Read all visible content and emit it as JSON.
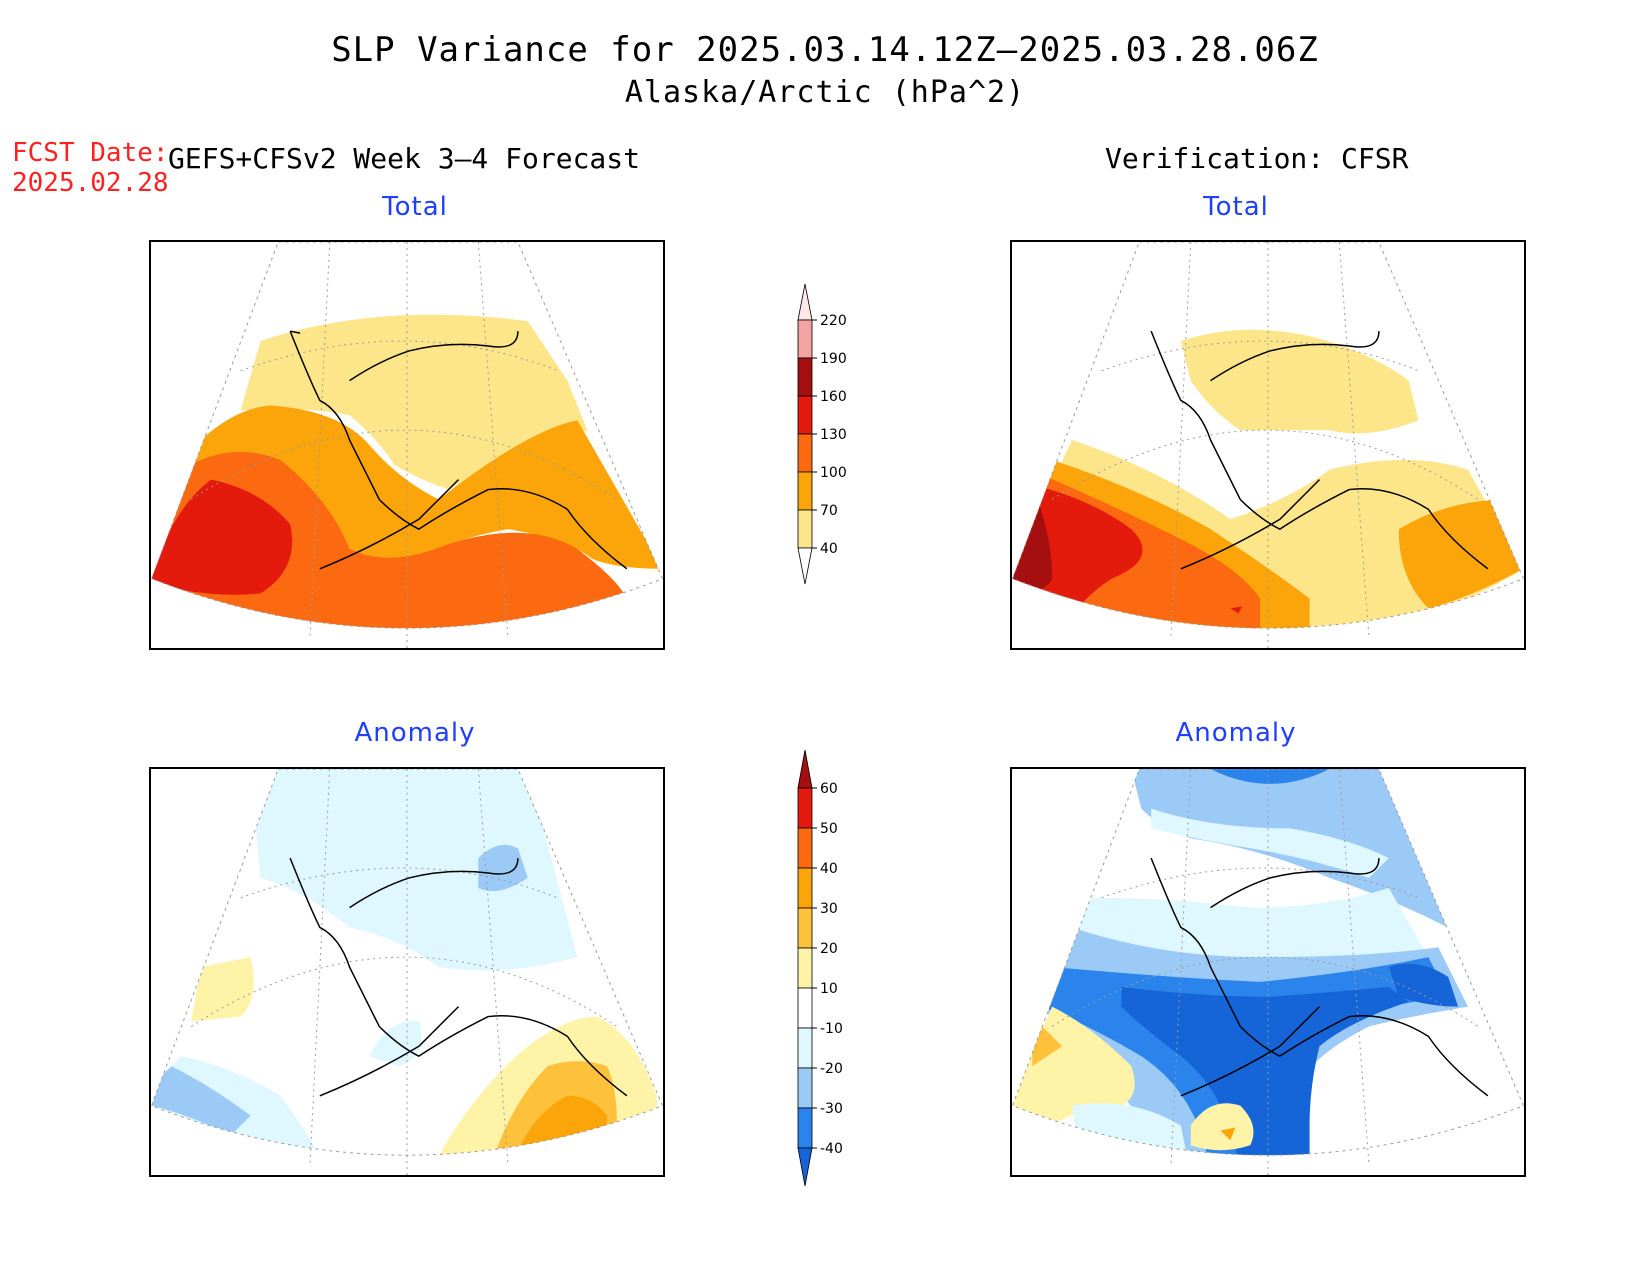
{
  "header": {
    "title": "SLP Variance for 2025.03.14.12Z–2025.03.28.06Z",
    "subtitle": "Alaska/Arctic (hPa^2)",
    "fcst_label": "FCST Date:",
    "fcst_date": "2025.02.28",
    "left_heading": "GEFS+CFSv2 Week 3–4 Forecast",
    "right_heading": "Verification: CFSR"
  },
  "panels": {
    "forecast_total_title": "Total",
    "verification_total_title": "Total",
    "forecast_anomaly_title": "Anomaly",
    "verification_anomaly_title": "Anomaly"
  },
  "colorbars": {
    "total": {
      "levels": [
        "40",
        "70",
        "100",
        "130",
        "160",
        "190",
        "220"
      ],
      "colors": [
        "#fde58a",
        "#fca50a",
        "#fb6a10",
        "#e31a0c",
        "#a50f0f",
        "#f4a2a2",
        "#fde7e7"
      ]
    },
    "anomaly": {
      "levels": [
        "-40",
        "-30",
        "-20",
        "-10",
        "10",
        "20",
        "30",
        "40",
        "50",
        "60"
      ],
      "colors": [
        "#1665d8",
        "#2b84ec",
        "#9ccaf7",
        "#dff7ff",
        "#ffffff",
        "#fff3a8",
        "#fdc13c",
        "#fca50a",
        "#fb6a10",
        "#e31a0c",
        "#a50f0f"
      ]
    }
  },
  "map_colors": {
    "land_outline": "#000000",
    "graticule": "#9a9a9a"
  }
}
